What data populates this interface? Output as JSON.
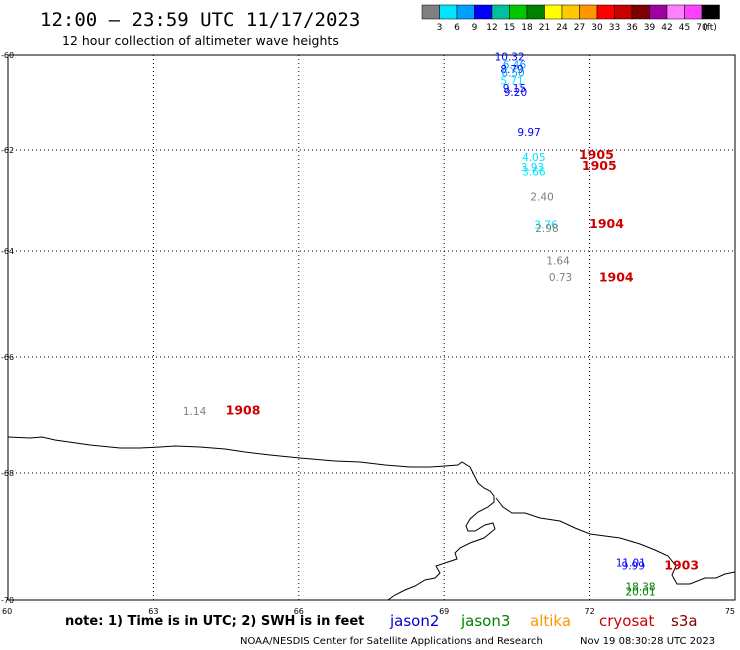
{
  "header": {
    "title": "12:00 — 23:59 UTC 11/17/2023",
    "subtitle": "12 hour collection of altimeter wave heights"
  },
  "legend": {
    "colors": [
      "#808080",
      "#00e5ff",
      "#00a0ff",
      "#0000ff",
      "#00c0a0",
      "#00c800",
      "#008000",
      "#ffff00",
      "#ffc800",
      "#ff9600",
      "#ff0000",
      "#c80000",
      "#800000",
      "#a000a0",
      "#ff80ff",
      "#ff40ff",
      "#000000"
    ],
    "labels": [
      {
        "text": "3",
        "after_index": 0
      },
      {
        "text": "6",
        "after_index": 1
      },
      {
        "text": "9",
        "after_index": 2
      },
      {
        "text": "12",
        "after_index": 3
      },
      {
        "text": "15",
        "after_index": 4
      },
      {
        "text": "18",
        "after_index": 5
      },
      {
        "text": "21",
        "after_index": 6
      },
      {
        "text": "24",
        "after_index": 7
      },
      {
        "text": "27",
        "after_index": 8
      },
      {
        "text": "30",
        "after_index": 9
      },
      {
        "text": "33",
        "after_index": 10
      },
      {
        "text": "36",
        "after_index": 11
      },
      {
        "text": "39",
        "after_index": 12
      },
      {
        "text": "42",
        "after_index": 13
      },
      {
        "text": "45",
        "after_index": 14
      },
      {
        "text": "70",
        "after_index": 15
      }
    ],
    "unit": "(ft)"
  },
  "axes": {
    "lon_ticks": [
      "60",
      "63",
      "66",
      "69",
      "72",
      "75"
    ],
    "lat_ticks": [
      "-60",
      "-62",
      "-64",
      "-66",
      "-68",
      "-70"
    ]
  },
  "wave_heights": [
    {
      "value": "10.32",
      "lon": 70.35,
      "lat": -60.12,
      "color": "#0000ff"
    },
    {
      "value": "6.46",
      "lon": 70.45,
      "lat": -60.28,
      "color": "#00a0ff"
    },
    {
      "value": "8.79",
      "lon": 70.4,
      "lat": -60.38,
      "color": "#0000ff"
    },
    {
      "value": "6.50",
      "lon": 70.42,
      "lat": -60.45,
      "color": "#00a0ff"
    },
    {
      "value": "5.71",
      "lon": 70.4,
      "lat": -60.62,
      "color": "#00e5ff"
    },
    {
      "value": "9.15",
      "lon": 70.45,
      "lat": -60.78,
      "color": "#0000ff"
    },
    {
      "value": "9.20",
      "lon": 70.47,
      "lat": -60.86,
      "color": "#0000ff"
    },
    {
      "value": "9.97",
      "lon": 70.75,
      "lat": -61.7,
      "color": "#0000ff"
    },
    {
      "value": "4.05",
      "lon": 70.85,
      "lat": -62.22,
      "color": "#00e5ff"
    },
    {
      "value": "3.93",
      "lon": 70.82,
      "lat": -62.42,
      "color": "#00e5ff"
    },
    {
      "value": "3.66",
      "lon": 70.85,
      "lat": -62.5,
      "color": "#00e5ff"
    },
    {
      "value": "2.40",
      "lon": 71.02,
      "lat": -63.0,
      "color": "#808080"
    },
    {
      "value": "3.76",
      "lon": 71.1,
      "lat": -63.55,
      "color": "#00e5ff"
    },
    {
      "value": "2.98",
      "lon": 71.12,
      "lat": -63.62,
      "color": "#808080"
    },
    {
      "value": "1.64",
      "lon": 71.35,
      "lat": -64.25,
      "color": "#808080"
    },
    {
      "value": "0.73",
      "lon": 71.4,
      "lat": -64.57,
      "color": "#808080"
    },
    {
      "value": "1.14",
      "lon": 63.85,
      "lat": -67.0,
      "color": "#808080"
    },
    {
      "value": "11.01",
      "lon": 72.85,
      "lat": -69.47,
      "color": "#0000ff"
    },
    {
      "value": "9.99",
      "lon": 72.9,
      "lat": -69.52,
      "color": "#0000ff"
    },
    {
      "value": "18.38",
      "lon": 73.05,
      "lat": -69.85,
      "color": "#008000"
    },
    {
      "value": "20.01",
      "lon": 73.05,
      "lat": -69.93,
      "color": "#008000"
    }
  ],
  "time_labels": [
    {
      "text": "1905",
      "lon": 72.14,
      "lat": -62.18
    },
    {
      "text": "1905",
      "lon": 72.2,
      "lat": -62.4
    },
    {
      "text": "1904",
      "lon": 72.35,
      "lat": -63.54
    },
    {
      "text": "1904",
      "lon": 72.55,
      "lat": -64.58
    },
    {
      "text": "1908",
      "lon": 64.85,
      "lat": -66.99
    },
    {
      "text": "1903",
      "lon": 73.9,
      "lat": -69.52
    }
  ],
  "footer": {
    "note": "note: 1) Time is in UTC; 2) SWH is in feet",
    "satellites": [
      {
        "name": "jason2",
        "color": "#0000cc"
      },
      {
        "name": "jason3",
        "color": "#008000"
      },
      {
        "name": "altika",
        "color": "#ff9600"
      },
      {
        "name": "cryosat",
        "color": "#cc0000"
      },
      {
        "name": "s3a",
        "color": "#800000"
      }
    ],
    "credit": "NOAA/NESDIS Center for Satellite Applications and Research",
    "timestamp": "Nov 19 08:30:28 UTC 2023"
  }
}
